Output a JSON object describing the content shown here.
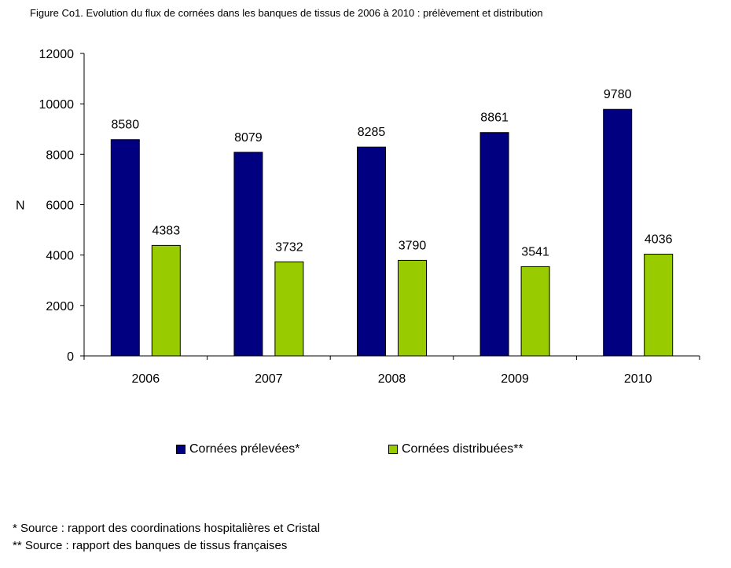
{
  "title": "Figure Co1. Evolution du flux de cornées dans les banques de tissus de 2006 à 2010 : prélèvement et distribution",
  "chart_data": {
    "type": "bar",
    "title": "Figure Co1. Evolution du flux de cornées dans les banques de tissus de 2006 à 2010 : prélèvement et distribution",
    "xlabel": "",
    "ylabel": "N",
    "ylim": [
      0,
      12000
    ],
    "yticks": [
      0,
      2000,
      4000,
      6000,
      8000,
      10000,
      12000
    ],
    "grid": false,
    "legend_position": "bottom",
    "categories": [
      "2006",
      "2007",
      "2008",
      "2009",
      "2010"
    ],
    "series": [
      {
        "name": "Cornées prélevées*",
        "color": "#000080",
        "values": [
          8580,
          8079,
          8285,
          8861,
          9780
        ]
      },
      {
        "name": "Cornées distribuées**",
        "color": "#99CC00",
        "values": [
          4383,
          3732,
          3790,
          3541,
          4036
        ]
      }
    ]
  },
  "footnotes": [
    "* Source : rapport des coordinations hospitalières et Cristal",
    "** Source : rapport des banques de tissus françaises"
  ]
}
